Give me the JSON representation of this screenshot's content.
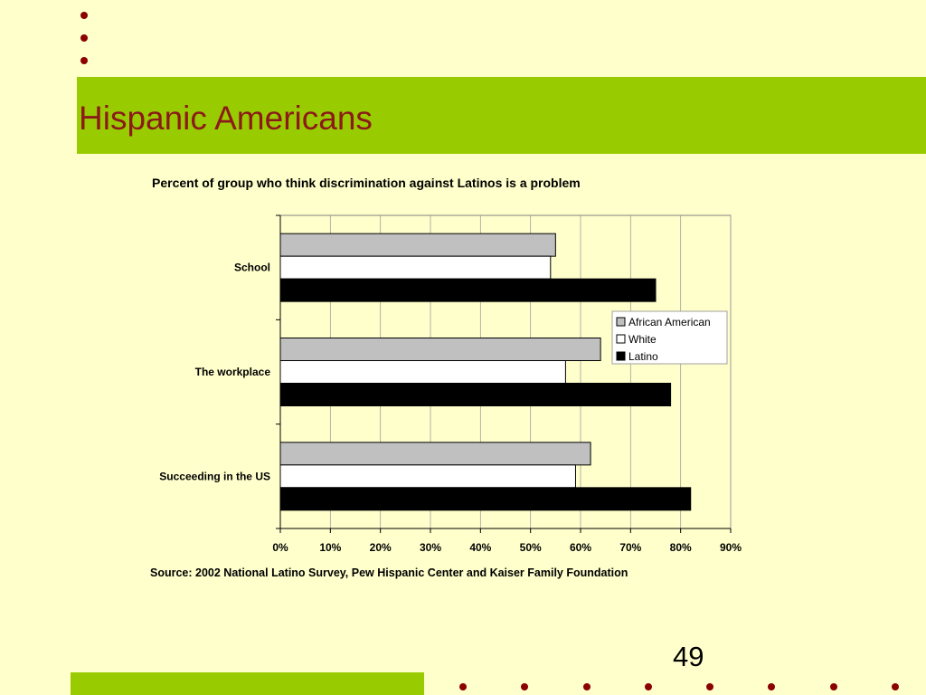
{
  "slide": {
    "title": "Hispanic Americans",
    "page_number": "49",
    "accent_color": "#99CC00",
    "title_color": "#8B1A1A",
    "bullet_color": "#8B0000",
    "background_color": "#FFFFCC"
  },
  "chart_data": {
    "type": "bar",
    "orientation": "horizontal",
    "title": "Percent of group who think discrimination against Latinos is a problem",
    "source": "Source: 2002 National Latino Survey, Pew Hispanic Center and Kaiser Family Foundation",
    "categories": [
      "School",
      "The workplace",
      "Succeeding in the US"
    ],
    "series": [
      {
        "name": "African American",
        "color": "#C0C0C0",
        "values": [
          55,
          64,
          62
        ]
      },
      {
        "name": "White",
        "color": "#FFFFFF",
        "values": [
          54,
          57,
          59
        ]
      },
      {
        "name": "Latino",
        "color": "#000000",
        "values": [
          75,
          78,
          82
        ]
      }
    ],
    "xlim": [
      0,
      90
    ],
    "xticks": [
      "0%",
      "10%",
      "20%",
      "30%",
      "40%",
      "50%",
      "60%",
      "70%",
      "80%",
      "90%"
    ],
    "grid": true,
    "legend_position": "right"
  }
}
